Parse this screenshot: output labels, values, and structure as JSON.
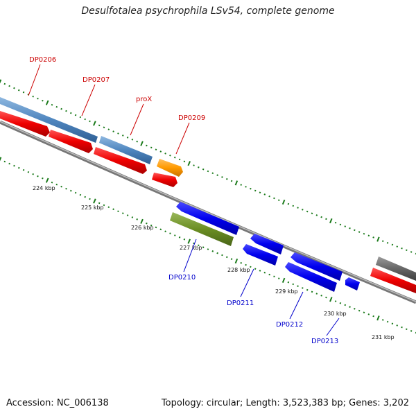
{
  "title": "Desulfotalea psychrophila LSv54, complete genome",
  "accession": "Accession: NC_006138",
  "summary": "Topology: circular; Length: 3,523,383 bp; Genes: 3,202",
  "colors": {
    "label_forward": "#cc0000",
    "label_reverse": "#0000cc",
    "backbone": "#888888",
    "tick": "#1a7a1a"
  },
  "kbp_labels": [
    "224 kbp",
    "225 kbp",
    "226 kbp",
    "227 kbp",
    "228 kbp",
    "229 kbp",
    "230 kbp",
    "231 kbp"
  ],
  "gene_labels": [
    {
      "id": "dp0206",
      "text": "DP0206",
      "strand": "forward"
    },
    {
      "id": "dp0207",
      "text": "DP0207",
      "strand": "forward"
    },
    {
      "id": "prox",
      "text": "proX",
      "strand": "forward"
    },
    {
      "id": "dp0209",
      "text": "DP0209",
      "strand": "forward"
    },
    {
      "id": "dp0210",
      "text": "DP0210",
      "strand": "reverse"
    },
    {
      "id": "dp0211",
      "text": "DP0211",
      "strand": "reverse"
    },
    {
      "id": "dp0212",
      "text": "DP0212",
      "strand": "reverse"
    },
    {
      "id": "dp0213",
      "text": "DP0213",
      "strand": "reverse"
    }
  ]
}
